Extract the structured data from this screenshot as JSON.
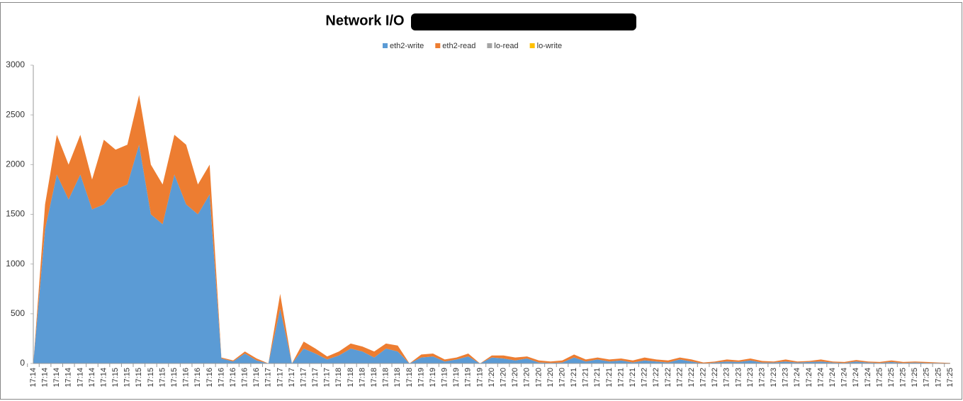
{
  "chart_data": {
    "type": "stacked_area",
    "title": "Network I/O",
    "categories": [
      "17:14",
      "17:14",
      "17:14",
      "17:14",
      "17:14",
      "17:14",
      "17:14",
      "17:15",
      "17:15",
      "17:15",
      "17:15",
      "17:15",
      "17:15",
      "17:16",
      "17:16",
      "17:16",
      "17:16",
      "17:16",
      "17:16",
      "17:16",
      "17:17",
      "17:17",
      "17:17",
      "17:17",
      "17:17",
      "17:17",
      "17:18",
      "17:18",
      "17:18",
      "17:18",
      "17:18",
      "17:18",
      "17:18",
      "17:19",
      "17:19",
      "17:19",
      "17:19",
      "17:19",
      "17:19",
      "17:20",
      "17:20",
      "17:20",
      "17:20",
      "17:20",
      "17:20",
      "17:20",
      "17:21",
      "17:21",
      "17:21",
      "17:21",
      "17:21",
      "17:21",
      "17:22",
      "17:22",
      "17:22",
      "17:22",
      "17:22",
      "17:22",
      "17:22",
      "17:23",
      "17:23",
      "17:23",
      "17:23",
      "17:23",
      "17:23",
      "17:24",
      "17:24",
      "17:24",
      "17:24",
      "17:24",
      "17:24",
      "17:24",
      "17:25",
      "17:25",
      "17:25",
      "17:25",
      "17:25",
      "17:25",
      "17:25"
    ],
    "series": [
      {
        "name": "eth2-write",
        "color": "#5b9bd5",
        "values": [
          0,
          1350,
          1900,
          1650,
          1900,
          1550,
          1600,
          1750,
          1800,
          2200,
          1500,
          1400,
          1900,
          1600,
          1500,
          1700,
          50,
          20,
          100,
          30,
          0,
          550,
          0,
          150,
          100,
          40,
          80,
          150,
          120,
          60,
          150,
          120,
          0,
          60,
          70,
          20,
          40,
          70,
          0,
          60,
          50,
          30,
          50,
          10,
          5,
          10,
          60,
          20,
          40,
          20,
          30,
          10,
          30,
          20,
          10,
          40,
          20,
          0,
          10,
          20,
          15,
          30,
          10,
          10,
          20,
          10,
          15,
          20,
          10,
          5,
          20,
          10,
          5,
          15,
          5,
          10,
          5,
          5,
          0
        ]
      },
      {
        "name": "eth2-read",
        "color": "#ed7d31",
        "values": [
          0,
          250,
          400,
          350,
          400,
          300,
          650,
          400,
          400,
          500,
          500,
          400,
          400,
          600,
          300,
          300,
          10,
          10,
          20,
          20,
          0,
          150,
          0,
          70,
          50,
          30,
          40,
          50,
          50,
          60,
          50,
          60,
          0,
          30,
          30,
          20,
          20,
          30,
          0,
          20,
          30,
          30,
          20,
          20,
          15,
          20,
          30,
          20,
          20,
          20,
          20,
          20,
          30,
          20,
          20,
          20,
          20,
          10,
          10,
          20,
          15,
          20,
          15,
          10,
          20,
          10,
          10,
          20,
          10,
          10,
          15,
          10,
          10,
          15,
          10,
          10,
          10,
          5,
          5
        ]
      },
      {
        "name": "lo-read",
        "color": "#a5a5a5",
        "values": [
          0,
          0,
          0,
          0,
          0,
          0,
          0,
          0,
          0,
          0,
          0,
          0,
          0,
          0,
          0,
          0,
          0,
          0,
          0,
          0,
          0,
          0,
          0,
          0,
          0,
          0,
          0,
          0,
          0,
          0,
          0,
          0,
          0,
          0,
          0,
          0,
          0,
          0,
          0,
          0,
          0,
          0,
          0,
          0,
          0,
          0,
          0,
          0,
          0,
          0,
          0,
          0,
          0,
          0,
          0,
          0,
          0,
          0,
          0,
          0,
          0,
          0,
          0,
          0,
          0,
          0,
          0,
          0,
          0,
          0,
          0,
          0,
          0,
          0,
          0,
          0,
          0,
          0,
          0
        ]
      },
      {
        "name": "lo-write",
        "color": "#ffc000",
        "values": [
          0,
          0,
          0,
          0,
          0,
          0,
          0,
          0,
          0,
          0,
          0,
          0,
          0,
          0,
          0,
          0,
          0,
          0,
          0,
          0,
          0,
          0,
          0,
          0,
          0,
          0,
          0,
          0,
          0,
          0,
          0,
          0,
          0,
          0,
          0,
          0,
          0,
          0,
          0,
          0,
          0,
          0,
          0,
          0,
          0,
          0,
          0,
          0,
          0,
          0,
          0,
          0,
          0,
          0,
          0,
          0,
          0,
          0,
          0,
          0,
          0,
          0,
          0,
          0,
          0,
          0,
          0,
          0,
          0,
          0,
          0,
          0,
          0,
          0,
          0,
          0,
          0,
          0,
          0
        ]
      }
    ],
    "ylim": [
      0,
      3000
    ],
    "yticks": [
      0,
      500,
      1000,
      1500,
      2000,
      2500,
      3000
    ],
    "grid": false,
    "legend": "top"
  }
}
